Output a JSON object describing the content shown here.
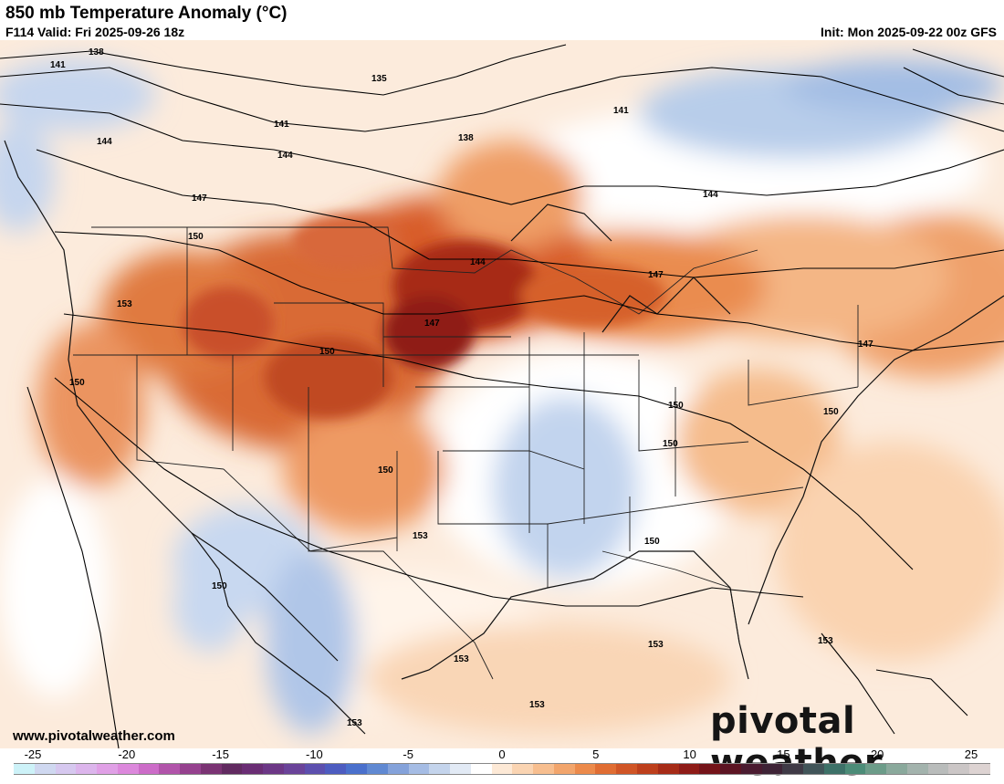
{
  "header": {
    "title": "850 mb Temperature Anomaly (°C)",
    "valid": "F114 Valid: Fri 2025-09-26 18z",
    "init": "Init: Mon 2025-09-22 00z GFS"
  },
  "footer": {
    "website": "www.pivotalweather.com",
    "logo": "pivotal weather"
  },
  "colorbar": {
    "ticks": [
      "-25",
      "-20",
      "-15",
      "-10",
      "-5",
      "0",
      "5",
      "10",
      "15",
      "20",
      "25"
    ],
    "colors": [
      "#cdf2f8",
      "#cfd8f0",
      "#d6c8ef",
      "#dcb5ec",
      "#e0a0e6",
      "#dc88dc",
      "#cc6cc8",
      "#b154aa",
      "#95418e",
      "#7a3373",
      "#612a60",
      "#6a2d74",
      "#6c3786",
      "#6a4399",
      "#5c4fae",
      "#4d5cc0",
      "#4a70cc",
      "#6089d2",
      "#84a2da",
      "#a5bce4",
      "#c4d4ec",
      "#e2eaf5",
      "#ffffff",
      "#fde9d6",
      "#fad4b2",
      "#f7be8f",
      "#f2a56c",
      "#ec8a4b",
      "#e06d33",
      "#d05526",
      "#bd3f1c",
      "#a62b17",
      "#8e1b17",
      "#741319",
      "#5c1423",
      "#4a1b30",
      "#3e2336",
      "#3f3a46",
      "#415559",
      "#3d7168",
      "#4c8c78",
      "#6c9c89",
      "#8aa99c",
      "#a3b3ad",
      "#b9bcbb",
      "#cbc6c6",
      "#ddd3d2"
    ]
  },
  "contour_labels": [
    "138",
    "141",
    "135",
    "144",
    "147",
    "150",
    "153"
  ]
}
